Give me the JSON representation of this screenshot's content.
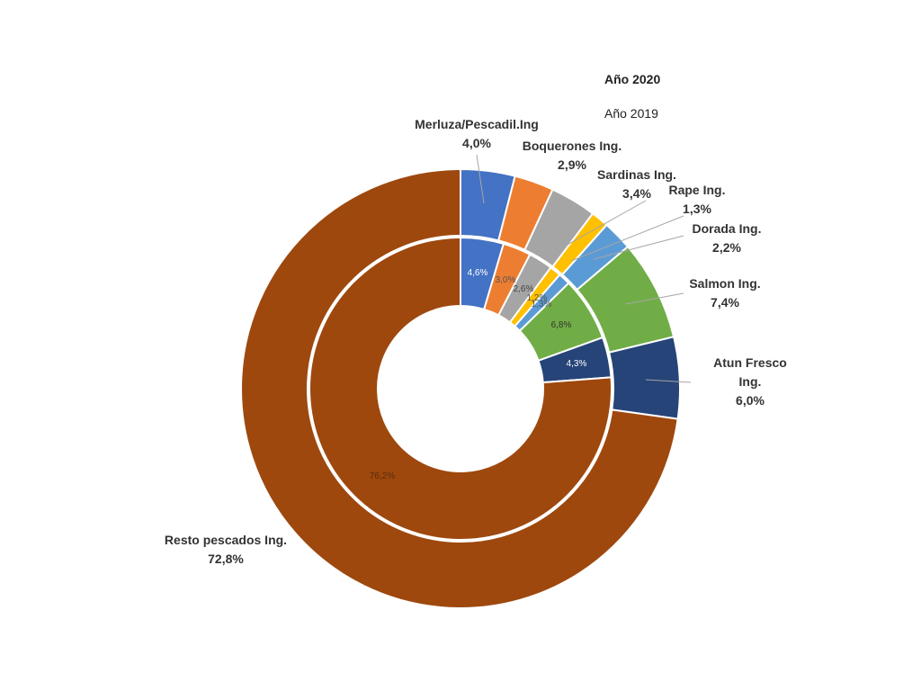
{
  "chart_data": {
    "type": "pie",
    "variant": "nested-donut",
    "legend": [
      {
        "name": "Año 2020",
        "bold": true
      },
      {
        "name": "Año 2019",
        "bold": false
      }
    ],
    "categories": [
      "Merluza/Pescadil.Ing",
      "Boquerones Ing.",
      "Sardinas Ing.",
      "Rape Ing.",
      "Dorada Ing.",
      "Salmon Ing.",
      "Atun Fresco Ing.",
      "Resto pescados Ing."
    ],
    "colors": [
      "#4472C4",
      "#ED7D31",
      "#A5A5A5",
      "#FFC000",
      "#5B9BD5",
      "#70AD47",
      "#264478",
      "#9E480E"
    ],
    "series": [
      {
        "name": "Año 2020",
        "ring": "outer",
        "values": [
          4.0,
          2.9,
          3.4,
          1.3,
          2.2,
          7.4,
          6.0,
          72.8
        ],
        "labels": [
          "4,0%",
          "2,9%",
          "3,4%",
          "1,3%",
          "2,2%",
          "7,4%",
          "6,0%",
          "72,8%"
        ]
      },
      {
        "name": "Año 2019",
        "ring": "inner",
        "values": [
          4.6,
          3.0,
          2.6,
          1.2,
          1.3,
          6.8,
          4.3,
          76.2
        ],
        "labels": [
          "4,6%",
          "3,0%",
          "2,6%",
          "1,2%",
          "1,3%",
          "6,8%",
          "4,3%",
          "76,2%"
        ]
      }
    ]
  }
}
